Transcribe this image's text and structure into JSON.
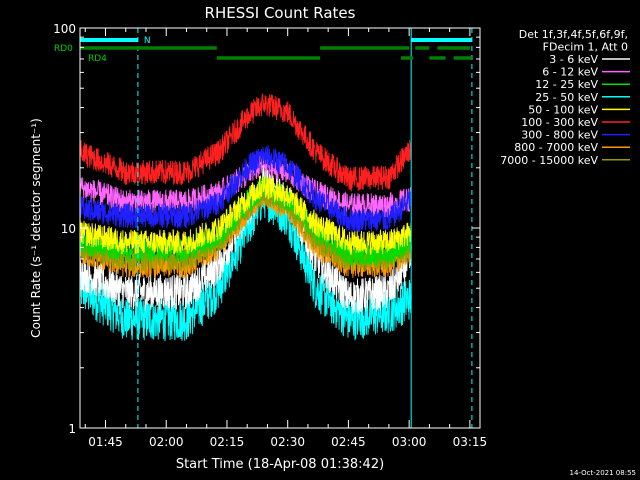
{
  "chart_data": {
    "type": "line",
    "title": "RHESSI Count Rates",
    "xlabel": "Start Time (18-Apr-08 01:38:42)",
    "ylabel": "Count Rate (s⁻¹ detector segment⁻¹)",
    "yscale": "log",
    "ylim": [
      1,
      100
    ],
    "xlim": [
      "01:38:42",
      "03:17:30"
    ],
    "x_ticks": [
      "01:45",
      "02:00",
      "02:15",
      "02:30",
      "02:45",
      "03:00",
      "03:15"
    ],
    "y_ticks": [
      "1",
      "10",
      "100"
    ],
    "legend_header": [
      "Det 1f,3f,4f,5f,6f,9f,",
      "FDecim 1, Att 0"
    ],
    "legend_placement": "right",
    "series": [
      {
        "name": "3 - 6 keV",
        "color": "#ffffff",
        "x": [
          "01:38:42",
          "01:50:00",
          "02:05:00",
          "02:13:00",
          "02:20:00",
          "02:24:00",
          "02:30:00",
          "02:37:00",
          "02:45:00",
          "02:55:00",
          "03:00:30"
        ],
        "values": [
          6.0,
          4.8,
          4.8,
          6.5,
          12.0,
          17.0,
          14.0,
          7.0,
          4.5,
          4.8,
          7.0
        ]
      },
      {
        "name": "6 - 12 keV",
        "color": "#ff66ff",
        "x": [
          "01:38:42",
          "01:50:00",
          "02:05:00",
          "02:13:00",
          "02:20:00",
          "02:24:00",
          "02:30:00",
          "02:37:00",
          "02:45:00",
          "02:55:00",
          "03:00:30"
        ],
        "values": [
          16.0,
          13.5,
          13.5,
          15.0,
          18.5,
          21.0,
          19.0,
          15.0,
          13.0,
          13.0,
          14.0
        ]
      },
      {
        "name": "12 - 25 keV",
        "color": "#00dd00",
        "x": [
          "01:38:42",
          "01:50:00",
          "02:05:00",
          "02:13:00",
          "02:20:00",
          "02:24:00",
          "02:30:00",
          "02:37:00",
          "02:45:00",
          "02:55:00",
          "03:00:30"
        ],
        "values": [
          8.5,
          7.8,
          7.8,
          9.0,
          13.5,
          16.0,
          14.0,
          9.5,
          7.5,
          7.5,
          8.5
        ]
      },
      {
        "name": "25 - 50 keV",
        "color": "#00ffff",
        "x": [
          "01:38:42",
          "01:50:00",
          "02:05:00",
          "02:13:00",
          "02:20:00",
          "02:24:00",
          "02:30:00",
          "02:37:00",
          "02:45:00",
          "02:55:00",
          "03:00:30"
        ],
        "values": [
          5.0,
          3.5,
          3.5,
          5.0,
          10.0,
          14.5,
          11.5,
          5.0,
          3.5,
          3.8,
          4.5
        ]
      },
      {
        "name": "50 - 100 keV",
        "color": "#ffff00",
        "x": [
          "01:38:42",
          "01:50:00",
          "02:05:00",
          "02:13:00",
          "02:20:00",
          "02:24:00",
          "02:30:00",
          "02:37:00",
          "02:45:00",
          "02:55:00",
          "03:00:30"
        ],
        "values": [
          9.5,
          8.5,
          8.5,
          10.0,
          14.0,
          16.5,
          14.5,
          10.5,
          8.5,
          8.5,
          9.5
        ]
      },
      {
        "name": "100 - 300 keV",
        "color": "#ff2020",
        "x": [
          "01:38:42",
          "01:50:00",
          "02:05:00",
          "02:13:00",
          "02:20:00",
          "02:24:00",
          "02:30:00",
          "02:37:00",
          "02:45:00",
          "02:55:00",
          "03:00:30"
        ],
        "values": [
          24.0,
          19.0,
          19.0,
          24.0,
          36.0,
          42.0,
          38.0,
          24.0,
          17.5,
          18.0,
          25.0
        ]
      },
      {
        "name": "300 - 800 keV",
        "color": "#2020ff",
        "x": [
          "01:38:42",
          "01:50:00",
          "02:05:00",
          "02:13:00",
          "02:20:00",
          "02:24:00",
          "02:30:00",
          "02:37:00",
          "02:45:00",
          "02:55:00",
          "03:00:30"
        ],
        "values": [
          12.5,
          11.5,
          11.5,
          13.5,
          20.0,
          23.0,
          20.5,
          14.0,
          11.0,
          11.0,
          14.0
        ]
      },
      {
        "name": "800 - 7000 keV",
        "color": "#ff9900",
        "x": [
          "01:38:42",
          "01:50:00",
          "02:05:00",
          "02:13:00",
          "02:20:00",
          "02:24:00",
          "02:30:00",
          "02:37:00",
          "02:45:00",
          "02:55:00",
          "03:00:30"
        ],
        "values": [
          7.5,
          6.5,
          6.5,
          8.0,
          12.0,
          14.5,
          12.5,
          8.0,
          6.5,
          6.5,
          7.5
        ]
      },
      {
        "name": "7000 - 15000 keV",
        "color": "#999900",
        "x": [
          "01:38:42",
          "01:50:00",
          "02:05:00",
          "02:13:00",
          "02:20:00",
          "02:24:00",
          "02:30:00",
          "02:37:00",
          "02:45:00",
          "02:55:00",
          "03:00:30"
        ],
        "values": [
          8.0,
          7.0,
          7.0,
          8.5,
          12.5,
          15.0,
          13.0,
          8.5,
          7.0,
          7.0,
          8.0
        ]
      }
    ],
    "flag_rows": [
      {
        "label": "N",
        "color": "#00ffff",
        "segments": [
          [
            "01:38:42",
            "01:53:00"
          ],
          [
            "03:00:30",
            "03:15:30"
          ]
        ]
      },
      {
        "label": "RD0",
        "color": "#008000",
        "segments": [
          [
            "01:38:42",
            "02:12:30"
          ],
          [
            "02:38:00",
            "03:00:00"
          ],
          [
            "03:01:30",
            "03:05:00"
          ],
          [
            "03:07:00",
            "03:15:00"
          ]
        ]
      },
      {
        "label": "RD4",
        "color": "#008000",
        "segments": [
          [
            "02:12:30",
            "02:38:00"
          ],
          [
            "02:58:00",
            "03:01:00"
          ],
          [
            "03:05:00",
            "03:09:00"
          ],
          [
            "03:11:00",
            "03:15:30"
          ]
        ]
      }
    ],
    "vertical_markers": [
      {
        "time": "01:38:42",
        "style": "solid",
        "color": "#00ffff"
      },
      {
        "time": "01:53:00",
        "style": "dashed",
        "color": "#00ffff"
      },
      {
        "time": "03:00:30",
        "style": "solid",
        "color": "#00ffff"
      },
      {
        "time": "03:15:30",
        "style": "dashed",
        "color": "#00ffff"
      }
    ],
    "footer_date": "14-Oct-2021 08:55",
    "grid": false
  }
}
